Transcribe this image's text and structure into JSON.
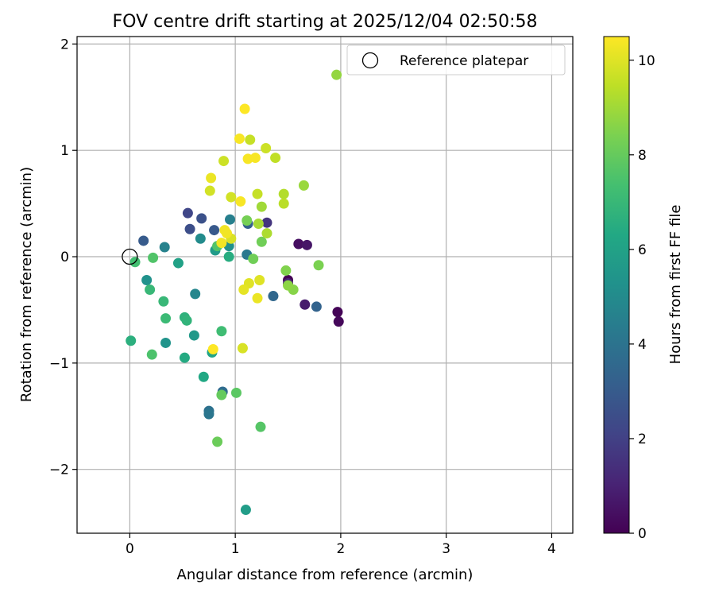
{
  "chart_data": {
    "type": "scatter",
    "title": "FOV centre drift starting at 2025/12/04 02:50:58",
    "xlabel": "Angular distance from reference (arcmin)",
    "ylabel": "Rotation from reference (arcmin)",
    "xlim": [
      -0.5,
      4.2
    ],
    "ylim": [
      -2.6,
      2.07
    ],
    "x_ticks": [
      0,
      1,
      2,
      3,
      4
    ],
    "x_tick_labels": [
      "0",
      "1",
      "2",
      "3",
      "4"
    ],
    "y_ticks": [
      -2,
      -1,
      0,
      1,
      2
    ],
    "y_tick_labels": [
      "−2",
      "−1",
      "0",
      "1",
      "2"
    ],
    "grid": true,
    "legend": {
      "placement": "top-right",
      "entries": [
        {
          "label": "Reference platepar",
          "marker": "open-circle"
        }
      ]
    },
    "reference_point": {
      "x": 0,
      "y": 0
    },
    "colorbar": {
      "label": "Hours from first FF file",
      "range": [
        0,
        10.5
      ],
      "ticks": [
        0,
        2,
        4,
        6,
        8,
        10
      ],
      "tick_labels": [
        "0",
        "2",
        "4",
        "6",
        "8",
        "10"
      ],
      "colormap": "viridis"
    },
    "points": [
      {
        "x": 1.5,
        "y": -0.22,
        "c": 0.0
      },
      {
        "x": 1.97,
        "y": -0.52,
        "c": 0.1
      },
      {
        "x": 1.98,
        "y": -0.61,
        "c": 0.2
      },
      {
        "x": 1.6,
        "y": 0.12,
        "c": 0.4
      },
      {
        "x": 1.68,
        "y": 0.11,
        "c": 0.6
      },
      {
        "x": 1.66,
        "y": -0.45,
        "c": 0.8
      },
      {
        "x": 1.5,
        "y": -0.25,
        "c": 1.0
      },
      {
        "x": 1.3,
        "y": 0.32,
        "c": 1.6
      },
      {
        "x": 0.55,
        "y": 0.41,
        "c": 2.2
      },
      {
        "x": 0.57,
        "y": 0.26,
        "c": 2.5
      },
      {
        "x": 0.68,
        "y": 0.36,
        "c": 2.6
      },
      {
        "x": 0.8,
        "y": 0.25,
        "c": 2.9
      },
      {
        "x": 0.13,
        "y": 0.15,
        "c": 3.0
      },
      {
        "x": 1.12,
        "y": 0.31,
        "c": 3.2
      },
      {
        "x": 1.77,
        "y": -0.47,
        "c": 3.3
      },
      {
        "x": 1.36,
        "y": -0.37,
        "c": 3.5
      },
      {
        "x": 0.88,
        "y": -1.27,
        "c": 3.7
      },
      {
        "x": 0.75,
        "y": -1.45,
        "c": 3.9
      },
      {
        "x": 0.75,
        "y": -1.48,
        "c": 4.1
      },
      {
        "x": 1.11,
        "y": 0.02,
        "c": 4.2
      },
      {
        "x": 0.95,
        "y": 0.35,
        "c": 4.5
      },
      {
        "x": 0.33,
        "y": 0.09,
        "c": 4.6
      },
      {
        "x": 0.62,
        "y": -0.35,
        "c": 4.8
      },
      {
        "x": 0.67,
        "y": 0.17,
        "c": 5.0
      },
      {
        "x": 0.94,
        "y": 0.1,
        "c": 5.2
      },
      {
        "x": 0.16,
        "y": -0.22,
        "c": 5.3
      },
      {
        "x": 0.34,
        "y": -0.81,
        "c": 5.4
      },
      {
        "x": 0.61,
        "y": -0.74,
        "c": 5.6
      },
      {
        "x": 0.81,
        "y": 0.06,
        "c": 5.7
      },
      {
        "x": 1.1,
        "y": -2.38,
        "c": 5.8
      },
      {
        "x": 0.46,
        "y": -0.06,
        "c": 6.0
      },
      {
        "x": 0.78,
        "y": -0.9,
        "c": 6.1
      },
      {
        "x": 0.7,
        "y": -1.13,
        "c": 6.3
      },
      {
        "x": 0.52,
        "y": -0.95,
        "c": 6.4
      },
      {
        "x": 0.94,
        "y": 0.0,
        "c": 6.5
      },
      {
        "x": 0.01,
        "y": -0.79,
        "c": 6.6
      },
      {
        "x": 0.52,
        "y": -0.57,
        "c": 6.7
      },
      {
        "x": 0.54,
        "y": -0.6,
        "c": 6.8
      },
      {
        "x": 0.19,
        "y": -0.31,
        "c": 7.0
      },
      {
        "x": 0.32,
        "y": -0.42,
        "c": 7.0
      },
      {
        "x": 0.34,
        "y": -0.58,
        "c": 7.1
      },
      {
        "x": 0.87,
        "y": -0.7,
        "c": 7.2
      },
      {
        "x": 0.05,
        "y": -0.05,
        "c": 7.3
      },
      {
        "x": 0.21,
        "y": -0.92,
        "c": 7.5
      },
      {
        "x": 0.22,
        "y": -0.01,
        "c": 7.6
      },
      {
        "x": 0.83,
        "y": 0.1,
        "c": 7.6
      },
      {
        "x": 1.24,
        "y": -1.6,
        "c": 7.7
      },
      {
        "x": 1.01,
        "y": -1.28,
        "c": 7.8
      },
      {
        "x": 0.87,
        "y": -1.3,
        "c": 8.0
      },
      {
        "x": 0.83,
        "y": -1.74,
        "c": 8.1
      },
      {
        "x": 1.17,
        "y": -0.02,
        "c": 8.2
      },
      {
        "x": 1.25,
        "y": 0.14,
        "c": 8.2
      },
      {
        "x": 1.11,
        "y": 0.34,
        "c": 8.3
      },
      {
        "x": 1.79,
        "y": -0.08,
        "c": 8.4
      },
      {
        "x": 1.48,
        "y": -0.13,
        "c": 8.5
      },
      {
        "x": 1.55,
        "y": -0.31,
        "c": 8.6
      },
      {
        "x": 1.5,
        "y": -0.27,
        "c": 8.7
      },
      {
        "x": 1.96,
        "y": 1.71,
        "c": 8.8
      },
      {
        "x": 1.65,
        "y": 0.67,
        "c": 8.9
      },
      {
        "x": 1.25,
        "y": 0.47,
        "c": 9.0
      },
      {
        "x": 1.22,
        "y": 0.31,
        "c": 9.1
      },
      {
        "x": 1.3,
        "y": 0.22,
        "c": 9.2
      },
      {
        "x": 1.46,
        "y": 0.59,
        "c": 9.3
      },
      {
        "x": 1.46,
        "y": 0.5,
        "c": 9.4
      },
      {
        "x": 1.38,
        "y": 0.93,
        "c": 9.5
      },
      {
        "x": 1.21,
        "y": 0.59,
        "c": 9.6
      },
      {
        "x": 1.14,
        "y": 1.1,
        "c": 9.6
      },
      {
        "x": 1.29,
        "y": 1.02,
        "c": 9.7
      },
      {
        "x": 0.89,
        "y": 0.9,
        "c": 9.7
      },
      {
        "x": 0.76,
        "y": 0.62,
        "c": 9.8
      },
      {
        "x": 0.96,
        "y": 0.56,
        "c": 9.8
      },
      {
        "x": 0.96,
        "y": 0.17,
        "c": 9.9
      },
      {
        "x": 1.07,
        "y": -0.86,
        "c": 9.9
      },
      {
        "x": 1.13,
        "y": -0.25,
        "c": 10.0
      },
      {
        "x": 1.23,
        "y": -0.22,
        "c": 10.0
      },
      {
        "x": 1.08,
        "y": -0.31,
        "c": 10.1
      },
      {
        "x": 1.21,
        "y": -0.39,
        "c": 10.2
      },
      {
        "x": 0.77,
        "y": 0.74,
        "c": 10.2
      },
      {
        "x": 0.87,
        "y": 0.13,
        "c": 10.3
      },
      {
        "x": 0.92,
        "y": 0.22,
        "c": 10.3
      },
      {
        "x": 0.9,
        "y": 0.25,
        "c": 10.3
      },
      {
        "x": 1.04,
        "y": 1.11,
        "c": 10.4
      },
      {
        "x": 1.12,
        "y": 0.92,
        "c": 10.4
      },
      {
        "x": 1.19,
        "y": 0.93,
        "c": 10.4
      },
      {
        "x": 1.05,
        "y": 0.52,
        "c": 10.4
      },
      {
        "x": 1.09,
        "y": 1.39,
        "c": 10.5
      },
      {
        "x": 0.79,
        "y": -0.87,
        "c": 10.5
      }
    ]
  }
}
